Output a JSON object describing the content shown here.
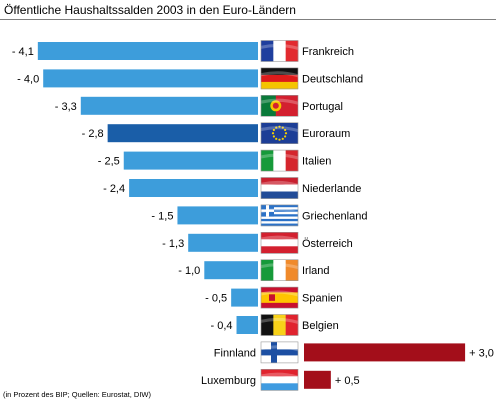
{
  "chart_data": {
    "type": "bar",
    "orientation": "horizontal",
    "title": "Öffentliche Haushaltssalden 2003 in den Euro-Ländern",
    "footnote": "(in Prozent des BIP; Quellen: Eurostat, DIW)",
    "colors": {
      "negative": "#3d9ddb",
      "highlight": "#1a5ea8",
      "positive": "#a30e1a"
    },
    "items": [
      {
        "country": "Frankreich",
        "value": -4.1,
        "label": "- 4,1",
        "flag": "france-flag-icon"
      },
      {
        "country": "Deutschland",
        "value": -4.0,
        "label": "- 4,0",
        "flag": "germany-flag-icon"
      },
      {
        "country": "Portugal",
        "value": -3.3,
        "label": "- 3,3",
        "flag": "portugal-flag-icon"
      },
      {
        "country": "Euroraum",
        "value": -2.8,
        "label": "- 2,8",
        "flag": "eu-flag-icon",
        "highlight": true
      },
      {
        "country": "Italien",
        "value": -2.5,
        "label": "- 2,5",
        "flag": "italy-flag-icon"
      },
      {
        "country": "Niederlande",
        "value": -2.4,
        "label": "- 2,4",
        "flag": "netherlands-flag-icon"
      },
      {
        "country": "Griechenland",
        "value": -1.5,
        "label": "- 1,5",
        "flag": "greece-flag-icon"
      },
      {
        "country": "Österreich",
        "value": -1.3,
        "label": "- 1,3",
        "flag": "austria-flag-icon"
      },
      {
        "country": "Irland",
        "value": -1.0,
        "label": "- 1,0",
        "flag": "ireland-flag-icon"
      },
      {
        "country": "Spanien",
        "value": -0.5,
        "label": "- 0,5",
        "flag": "spain-flag-icon"
      },
      {
        "country": "Belgien",
        "value": -0.4,
        "label": "- 0,4",
        "flag": "belgium-flag-icon"
      },
      {
        "country": "Finnland",
        "value": 3.0,
        "label": "+ 3,0",
        "flag": "finland-flag-icon"
      },
      {
        "country": "Luxemburg",
        "value": 0.5,
        "label": "+ 0,5",
        "flag": "luxembourg-flag-icon"
      }
    ]
  }
}
